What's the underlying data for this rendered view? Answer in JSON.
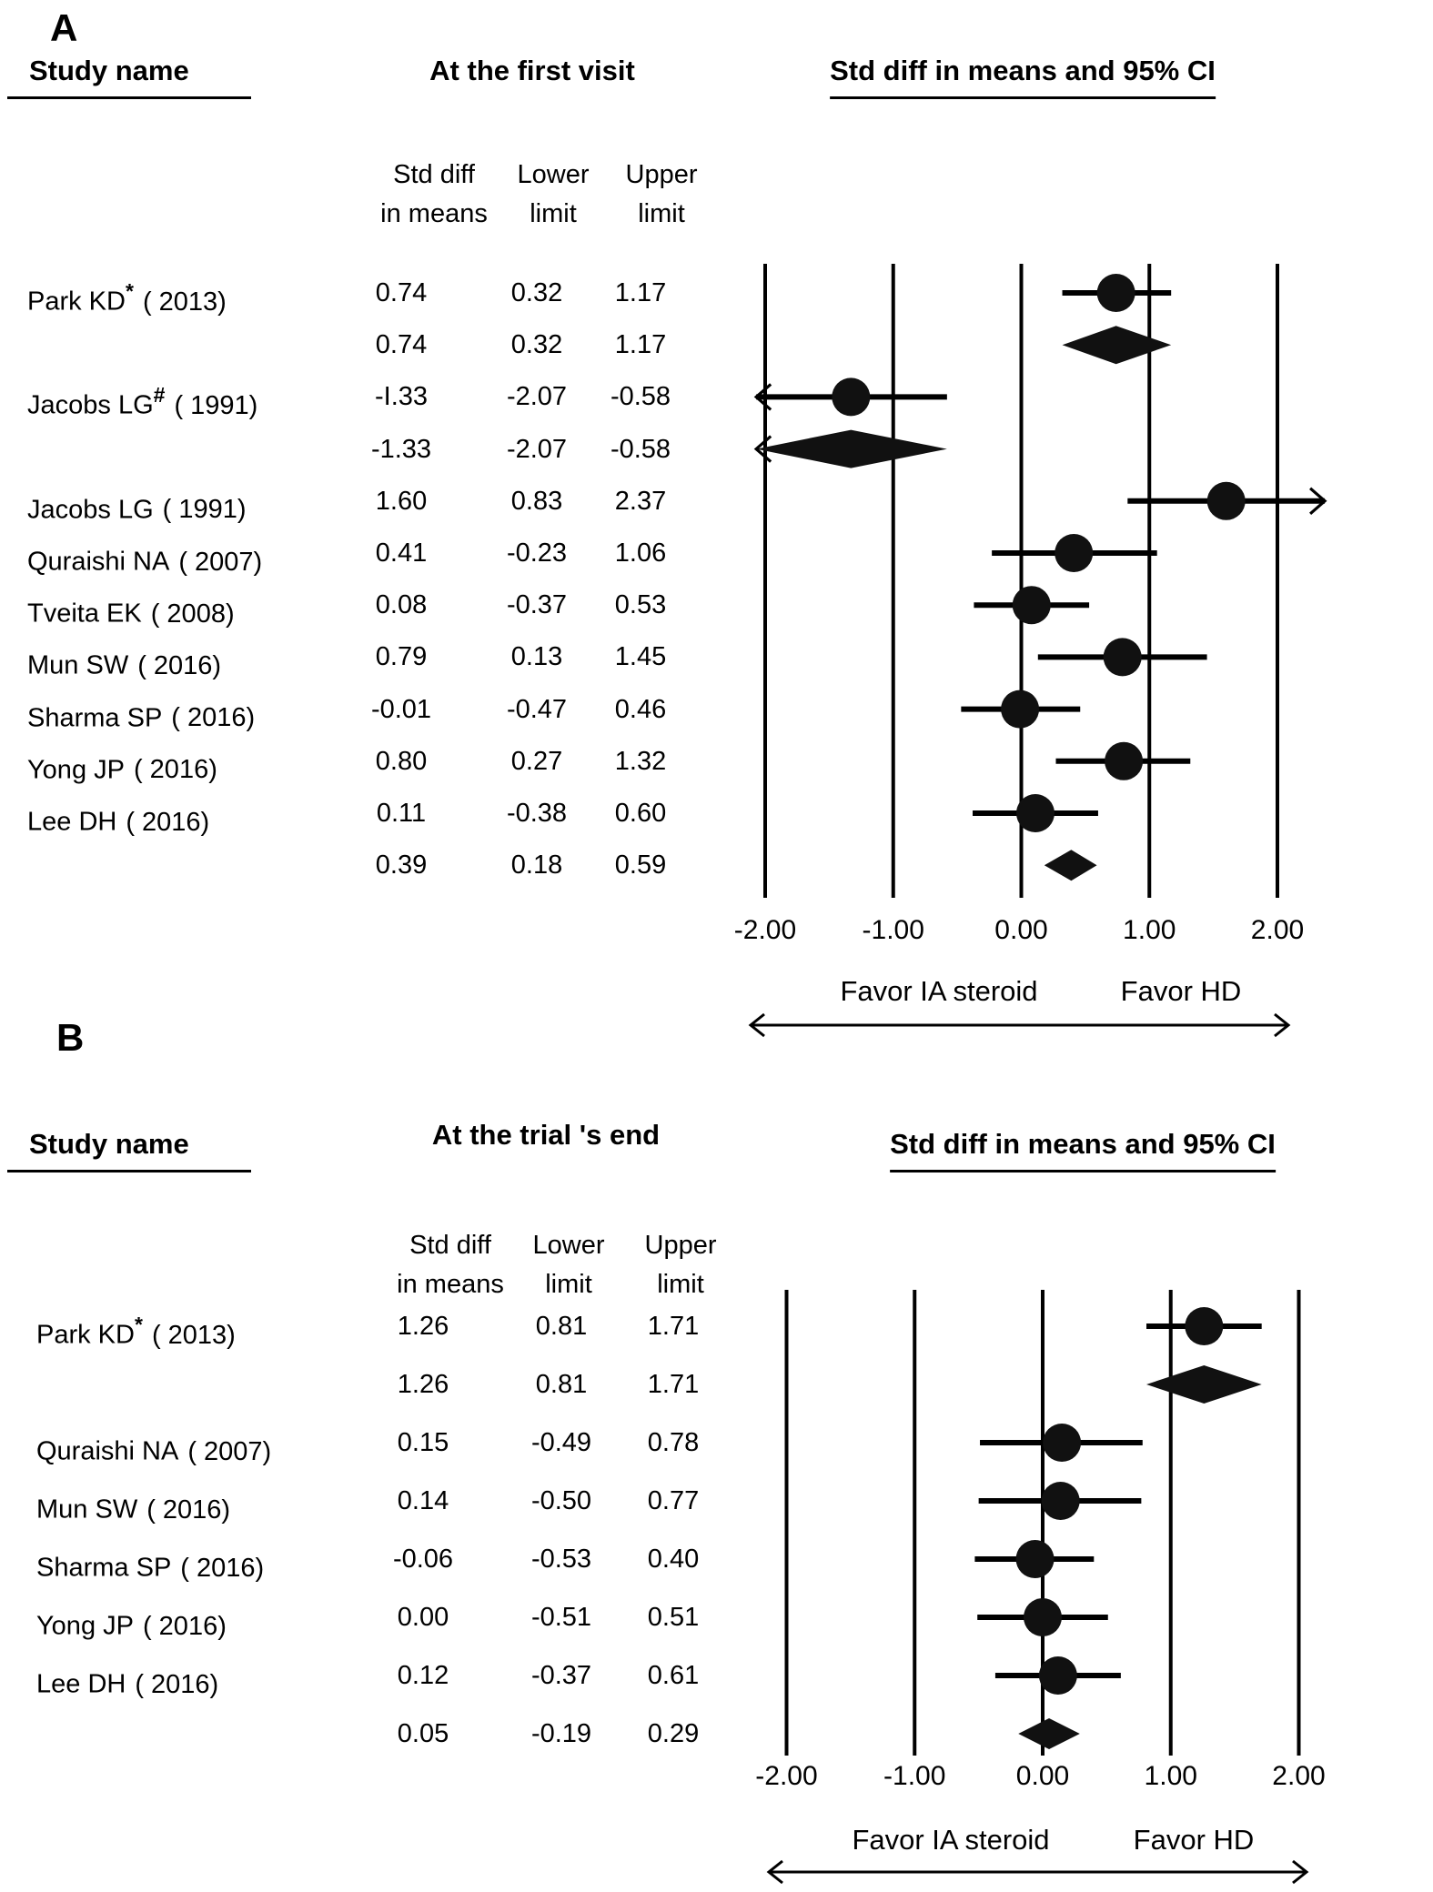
{
  "panels": [
    {
      "label": "A",
      "study_header": "Study name",
      "col1_line1": "Std diff",
      "col1_line2": "in means",
      "col2_line1": "Lower",
      "col2_line2": "limit",
      "col3_line1": "Upper",
      "col3_line2": "limit"
    },
    {
      "label": "B",
      "study_header": "Study name",
      "col1_line1": "Std diff",
      "col1_line2": "in means",
      "col2_line1": "Lower",
      "col2_line2": "limit",
      "col3_line1": "Upper",
      "col3_line2": "limit"
    }
  ],
  "chart_data": [
    {
      "type": "scatter",
      "subtype": "forest-plot",
      "panel": "A",
      "title": "At the first visit",
      "axis_title": "Std diff in means and 95% CI",
      "xlabel_left": "Favor IA steroid",
      "xlabel_right": "Favor HD",
      "xlim": [
        -2,
        2
      ],
      "xticks": [
        -2,
        -1,
        0,
        1,
        2
      ],
      "xtick_labels": [
        "-2.00",
        "-1.00",
        "0.00",
        "1.00",
        "2.00"
      ],
      "grid": true,
      "marker_color": "#111111",
      "rows": [
        {
          "study": "Park KD",
          "sup": "*",
          "year": "( 2013)",
          "kind": "study",
          "est": 0.74,
          "lo": 0.32,
          "hi": 1.17,
          "est_text": "0.74",
          "lo_text": "0.32",
          "hi_text": "1.17"
        },
        {
          "study": "",
          "sup": "",
          "year": "",
          "kind": "summary",
          "est": 0.74,
          "lo": 0.32,
          "hi": 1.17,
          "est_text": "0.74",
          "lo_text": "0.32",
          "hi_text": "1.17"
        },
        {
          "study": "Jacobs LG",
          "sup": "#",
          "year": "( 1991)",
          "kind": "study",
          "est": -1.33,
          "lo": -2.07,
          "hi": -0.58,
          "est_text": "-I.33",
          "lo_text": "-2.07",
          "hi_text": "-0.58"
        },
        {
          "study": "",
          "sup": "",
          "year": "",
          "kind": "summary",
          "est": -1.33,
          "lo": -2.07,
          "hi": -0.58,
          "est_text": "-1.33",
          "lo_text": "-2.07",
          "hi_text": "-0.58"
        },
        {
          "study": "Jacobs LG",
          "sup": "",
          "year": "( 1991)",
          "kind": "study",
          "est": 1.6,
          "lo": 0.83,
          "hi": 2.37,
          "est_text": "1.60",
          "lo_text": "0.83",
          "hi_text": "2.37"
        },
        {
          "study": "Quraishi NA",
          "sup": "",
          "year": "( 2007)",
          "kind": "study",
          "est": 0.41,
          "lo": -0.23,
          "hi": 1.06,
          "est_text": "0.41",
          "lo_text": "-0.23",
          "hi_text": "1.06"
        },
        {
          "study": "Tveita EK",
          "sup": "",
          "year": "( 2008)",
          "kind": "study",
          "est": 0.08,
          "lo": -0.37,
          "hi": 0.53,
          "est_text": "0.08",
          "lo_text": "-0.37",
          "hi_text": "0.53"
        },
        {
          "study": "Mun SW",
          "sup": "",
          "year": "( 2016)",
          "kind": "study",
          "est": 0.79,
          "lo": 0.13,
          "hi": 1.45,
          "est_text": "0.79",
          "lo_text": "0.13",
          "hi_text": "1.45"
        },
        {
          "study": "Sharma SP",
          "sup": "",
          "year": "( 2016)",
          "kind": "study",
          "est": -0.01,
          "lo": -0.47,
          "hi": 0.46,
          "est_text": "-0.01",
          "lo_text": "-0.47",
          "hi_text": "0.46"
        },
        {
          "study": "Yong JP",
          "sup": "",
          "year": "( 2016)",
          "kind": "study",
          "est": 0.8,
          "lo": 0.27,
          "hi": 1.32,
          "est_text": "0.80",
          "lo_text": "0.27",
          "hi_text": "1.32"
        },
        {
          "study": "Lee DH",
          "sup": "",
          "year": "( 2016)",
          "kind": "study",
          "est": 0.11,
          "lo": -0.38,
          "hi": 0.6,
          "est_text": "0.11",
          "lo_text": "-0.38",
          "hi_text": "0.60"
        },
        {
          "study": "",
          "sup": "",
          "year": "",
          "kind": "summary",
          "est": 0.39,
          "lo": 0.18,
          "hi": 0.59,
          "est_text": "0.39",
          "lo_text": "0.18",
          "hi_text": "0.59"
        }
      ]
    },
    {
      "type": "scatter",
      "subtype": "forest-plot",
      "panel": "B",
      "title": "At the trial 's end",
      "axis_title": "Std diff in means and 95% CI",
      "xlabel_left": "Favor IA steroid",
      "xlabel_right": "Favor HD",
      "xlim": [
        -2,
        2
      ],
      "xticks": [
        -2,
        -1,
        0,
        1,
        2
      ],
      "xtick_labels": [
        "-2.00",
        "-1.00",
        "0.00",
        "1.00",
        "2.00"
      ],
      "grid": true,
      "marker_color": "#111111",
      "rows": [
        {
          "study": "Park KD",
          "sup": "*",
          "year": "( 2013)",
          "kind": "study",
          "est": 1.26,
          "lo": 0.81,
          "hi": 1.71,
          "est_text": "1.26",
          "lo_text": "0.81",
          "hi_text": "1.71"
        },
        {
          "study": "",
          "sup": "",
          "year": "",
          "kind": "summary",
          "est": 1.26,
          "lo": 0.81,
          "hi": 1.71,
          "est_text": "1.26",
          "lo_text": "0.81",
          "hi_text": "1.71"
        },
        {
          "study": "Quraishi NA",
          "sup": "",
          "year": "( 2007)",
          "kind": "study",
          "est": 0.15,
          "lo": -0.49,
          "hi": 0.78,
          "est_text": "0.15",
          "lo_text": "-0.49",
          "hi_text": "0.78"
        },
        {
          "study": "Mun SW",
          "sup": "",
          "year": "( 2016)",
          "kind": "study",
          "est": 0.14,
          "lo": -0.5,
          "hi": 0.77,
          "est_text": "0.14",
          "lo_text": "-0.50",
          "hi_text": "0.77"
        },
        {
          "study": "Sharma SP",
          "sup": "",
          "year": "( 2016)",
          "kind": "study",
          "est": -0.06,
          "lo": -0.53,
          "hi": 0.4,
          "est_text": "-0.06",
          "lo_text": "-0.53",
          "hi_text": "0.40"
        },
        {
          "study": "Yong JP",
          "sup": "",
          "year": "( 2016)",
          "kind": "study",
          "est": 0.0,
          "lo": -0.51,
          "hi": 0.51,
          "est_text": "0.00",
          "lo_text": "-0.51",
          "hi_text": "0.51"
        },
        {
          "study": "Lee DH",
          "sup": "",
          "year": "( 2016)",
          "kind": "study",
          "est": 0.12,
          "lo": -0.37,
          "hi": 0.61,
          "est_text": "0.12",
          "lo_text": "-0.37",
          "hi_text": "0.61"
        },
        {
          "study": "",
          "sup": "",
          "year": "",
          "kind": "summary",
          "est": 0.05,
          "lo": -0.19,
          "hi": 0.29,
          "est_text": "0.05",
          "lo_text": "-0.19",
          "hi_text": "0.29"
        }
      ]
    }
  ]
}
